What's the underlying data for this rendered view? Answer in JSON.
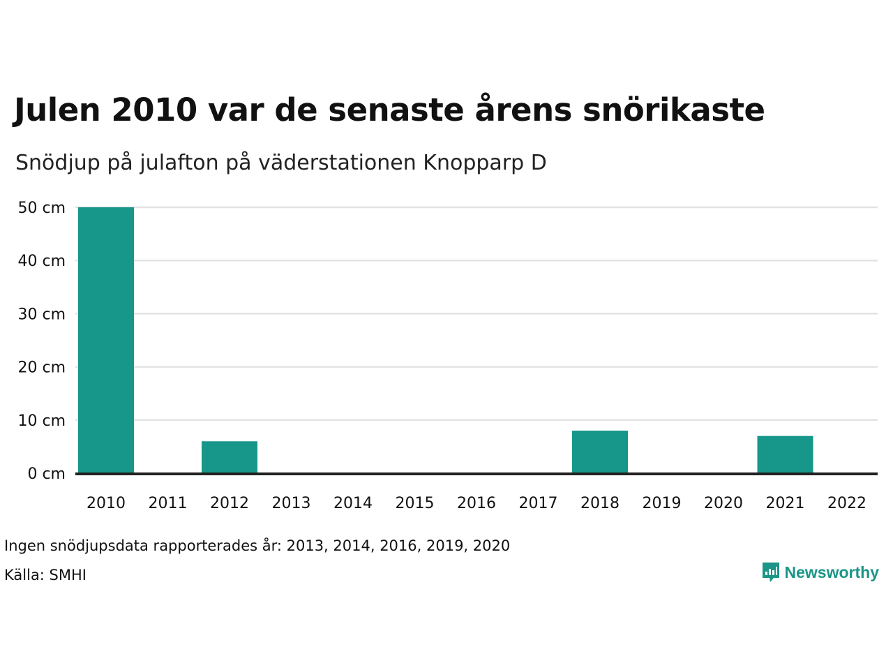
{
  "title": "Julen 2010 var de senaste årens snörikaste",
  "subtitle": "Snödjup på julafton på väderstationen Knopparp D",
  "footnote": "Ingen snödjupsdata rapporterades år: 2013, 2014, 2016, 2019, 2020",
  "source": "Källa: SMHI",
  "logo": {
    "text": "Newsworthy",
    "color": "#1a9587",
    "icon": "bar-chart-speech-bubble-icon"
  },
  "colors": {
    "bar": "#16978a",
    "grid": "#e3e3e3",
    "baseline": "#222222"
  },
  "chart_data": {
    "type": "bar",
    "categories": [
      "2010",
      "2011",
      "2012",
      "2013",
      "2014",
      "2015",
      "2016",
      "2017",
      "2018",
      "2019",
      "2020",
      "2021",
      "2022"
    ],
    "values": [
      50,
      0,
      6,
      0,
      0,
      0,
      0,
      0,
      8,
      0,
      0,
      7,
      0
    ],
    "ylim": [
      0,
      50
    ],
    "yticks": [
      0,
      10,
      20,
      30,
      40,
      50
    ],
    "ytick_labels": [
      "0 cm",
      "10 cm",
      "20 cm",
      "30 cm",
      "40 cm",
      "50 cm"
    ],
    "xlabel": "",
    "ylabel": "",
    "grid": true
  }
}
